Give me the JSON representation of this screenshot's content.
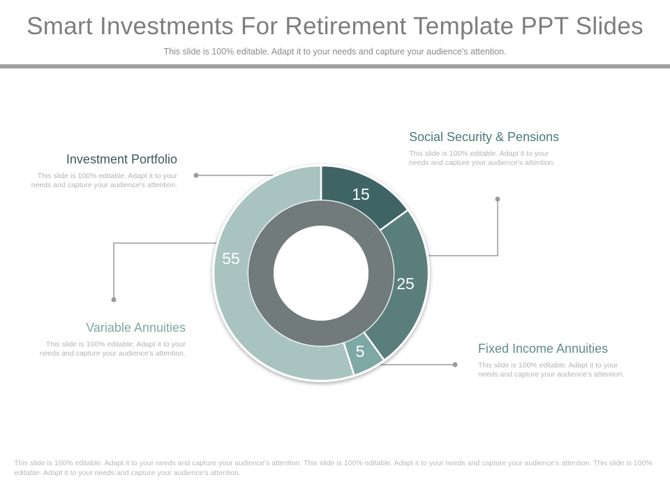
{
  "header": {
    "title": "Smart Investments For Retirement Template PPT Slides",
    "subtitle": "This slide is 100% editable. Adapt it to your needs and capture your audience's attention."
  },
  "chart_data": {
    "type": "pie",
    "variant": "doughnut",
    "categories": [
      "Social Security & Pensions",
      "Fixed Income Annuities",
      "Variable Annuities",
      "Investment Portfolio"
    ],
    "values": [
      15,
      25,
      5,
      55
    ],
    "value_labels": [
      "15",
      "25",
      "5",
      "55"
    ],
    "colors": [
      "#3f6466",
      "#5a7e7b",
      "#7ea8a4",
      "#a9c3c1"
    ],
    "inner_ring_color": "#6e7878"
  },
  "blocks": {
    "investment_portfolio": {
      "title": "Investment Portfolio",
      "desc": "This slide is 100% editable. Adapt it to your needs and capture your audience's attention.",
      "color": "#3a5a5c"
    },
    "social_security": {
      "title": "Social Security & Pensions",
      "desc": "This slide is 100% editable. Adapt it to your needs and capture your audience's attention.",
      "color": "#4a7a78"
    },
    "variable_annuities": {
      "title": "Variable Annuities",
      "desc": "This slide is 100% editable. Adapt it to your needs and capture your audience's attention.",
      "color": "#7ea8a4"
    },
    "fixed_income": {
      "title": "Fixed Income Annuities",
      "desc": "This slide is 100% editable. Adapt it to your needs and capture your audience's attention.",
      "color": "#5f8c89"
    }
  },
  "footer": {
    "text": "This slide is 100% editable. Adapt it to your needs and capture your audience's attention. This slide is 100% editable. Adapt it to your needs and capture your audience's attention. This slide is 100% editable. Adapt it to your needs and capture your audience's attention."
  }
}
